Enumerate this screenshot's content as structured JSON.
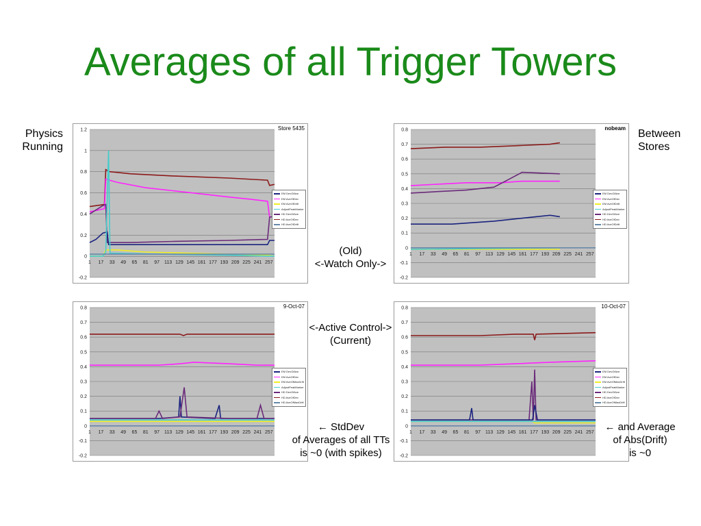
{
  "page": {
    "title": "Averages of all Trigger Towers",
    "left_label": [
      "Physics",
      "Running"
    ],
    "right_label": [
      "Between",
      "Stores"
    ],
    "note_old": [
      "(Old)",
      "<-Watch Only->"
    ],
    "note_active": [
      "<-Active Control->",
      "(Current)"
    ],
    "note_stddev": [
      "←      StdDev",
      "of Averages of all TTs",
      "is ~0 (with spikes)"
    ],
    "note_drift": [
      "← and Average",
      "of Abs(Drift)",
      "is ~0"
    ]
  },
  "chart_data": [
    {
      "type": "line",
      "title": "Store 5435",
      "ylim": [
        -0.2,
        1.2
      ],
      "yticks": [
        "-0.2",
        "0",
        "0.2",
        "0.4",
        "0.6",
        "0.8",
        "1",
        "1.2"
      ],
      "xticks": [
        "1",
        "17",
        "33",
        "49",
        "65",
        "81",
        "97",
        "113",
        "129",
        "145",
        "161",
        "177",
        "193",
        "209",
        "225",
        "241",
        "257"
      ],
      "xmax": 265,
      "legend": [
        "EM DevOfAve",
        "EM AveOfDev",
        "EM AveOfDrift",
        "AdjustPeakMarker",
        "HD DevOfAve",
        "HD AveOfDev",
        "HD AveOfDrift"
      ],
      "series": [
        {
          "color": "#8b1a1a",
          "points": [
            [
              1,
              0.47
            ],
            [
              22,
              0.49
            ],
            [
              24,
              0.82
            ],
            [
              30,
              0.8
            ],
            [
              60,
              0.78
            ],
            [
              120,
              0.76
            ],
            [
              200,
              0.74
            ],
            [
              255,
              0.72
            ],
            [
              258,
              0.67
            ],
            [
              265,
              0.68
            ]
          ]
        },
        {
          "color": "#ff22ff",
          "points": [
            [
              1,
              0.42
            ],
            [
              22,
              0.45
            ],
            [
              24,
              0.73
            ],
            [
              40,
              0.7
            ],
            [
              80,
              0.65
            ],
            [
              120,
              0.62
            ],
            [
              160,
              0.59
            ],
            [
              200,
              0.56
            ],
            [
              230,
              0.54
            ],
            [
              255,
              0.52
            ],
            [
              258,
              0.37
            ],
            [
              265,
              0.38
            ]
          ]
        },
        {
          "color": "#6a2a7a",
          "points": [
            [
              1,
              0.4
            ],
            [
              20,
              0.48
            ],
            [
              24,
              0.49
            ],
            [
              26,
              0.13
            ],
            [
              60,
              0.13
            ],
            [
              120,
              0.14
            ],
            [
              200,
              0.15
            ],
            [
              255,
              0.16
            ],
            [
              258,
              0.37
            ],
            [
              265,
              0.38
            ]
          ]
        },
        {
          "color": "#1a237e",
          "points": [
            [
              1,
              0.13
            ],
            [
              10,
              0.16
            ],
            [
              20,
              0.22
            ],
            [
              26,
              0.23
            ],
            [
              28,
              0.11
            ],
            [
              100,
              0.11
            ],
            [
              200,
              0.11
            ],
            [
              255,
              0.11
            ],
            [
              258,
              0.15
            ],
            [
              265,
              0.15
            ]
          ]
        },
        {
          "color": "#eeee22",
          "points": [
            [
              1,
              0.0
            ],
            [
              20,
              0.0
            ],
            [
              24,
              0.06
            ],
            [
              40,
              0.06
            ],
            [
              80,
              0.04
            ],
            [
              140,
              0.03
            ],
            [
              200,
              0.02
            ],
            [
              255,
              0.01
            ],
            [
              265,
              0.0
            ]
          ]
        },
        {
          "color": "#44cccc",
          "points": [
            [
              1,
              0.0
            ],
            [
              20,
              0.0
            ],
            [
              24,
              0.04
            ],
            [
              28,
              1.0
            ],
            [
              30,
              0.03
            ],
            [
              100,
              0.02
            ],
            [
              200,
              0.01
            ],
            [
              265,
              0.0
            ]
          ]
        },
        {
          "color": "#6688aa",
          "points": [
            [
              1,
              0.02
            ],
            [
              265,
              0.02
            ]
          ]
        }
      ]
    },
    {
      "type": "line",
      "title": "nobeam",
      "ylim": [
        -0.2,
        0.8
      ],
      "yticks": [
        "-0.2",
        "-0.1",
        "0",
        "0.1",
        "0.2",
        "0.3",
        "0.4",
        "0.5",
        "0.6",
        "0.7",
        "0.8"
      ],
      "xticks": [
        "1",
        "17",
        "33",
        "49",
        "65",
        "81",
        "97",
        "113",
        "129",
        "145",
        "161",
        "177",
        "193",
        "209",
        "225",
        "241",
        "257"
      ],
      "xmax": 265,
      "legend": [
        "EM DevOfAve",
        "EM AveOfDev",
        "EM AveOfDrift",
        "AdjustPeakMarker",
        "HD DevOfAve",
        "HD AveOfDev",
        "HD AveOfDrift"
      ],
      "series": [
        {
          "color": "#8b1a1a",
          "points": [
            [
              1,
              0.67
            ],
            [
              50,
              0.68
            ],
            [
              100,
              0.68
            ],
            [
              150,
              0.69
            ],
            [
              200,
              0.7
            ],
            [
              214,
              0.71
            ]
          ]
        },
        {
          "color": "#ff22ff",
          "points": [
            [
              1,
              0.42
            ],
            [
              40,
              0.43
            ],
            [
              80,
              0.44
            ],
            [
              130,
              0.44
            ],
            [
              160,
              0.45
            ],
            [
              214,
              0.45
            ]
          ]
        },
        {
          "color": "#6a2a7a",
          "points": [
            [
              1,
              0.37
            ],
            [
              40,
              0.38
            ],
            [
              80,
              0.39
            ],
            [
              120,
              0.41
            ],
            [
              140,
              0.46
            ],
            [
              160,
              0.51
            ],
            [
              214,
              0.5
            ]
          ]
        },
        {
          "color": "#1a237e",
          "points": [
            [
              1,
              0.16
            ],
            [
              60,
              0.16
            ],
            [
              120,
              0.18
            ],
            [
              160,
              0.2
            ],
            [
              200,
              0.22
            ],
            [
              214,
              0.21
            ]
          ]
        },
        {
          "color": "#eeee22",
          "points": [
            [
              1,
              -0.01
            ],
            [
              214,
              -0.01
            ]
          ]
        },
        {
          "color": "#44cccc",
          "points": [
            [
              1,
              -0.01
            ],
            [
              214,
              0.0
            ]
          ]
        },
        {
          "color": "#6688aa",
          "points": [
            [
              1,
              0.0
            ],
            [
              265,
              0.0
            ]
          ]
        }
      ]
    },
    {
      "type": "line",
      "title": "9-Oct-07",
      "ylim": [
        -0.2,
        0.8
      ],
      "yticks": [
        "-0.2",
        "-0.1",
        "0",
        "0.1",
        "0.2",
        "0.3",
        "0.4",
        "0.5",
        "0.6",
        "0.7",
        "0.8"
      ],
      "xticks": [
        "1",
        "17",
        "33",
        "49",
        "65",
        "81",
        "97",
        "113",
        "129",
        "145",
        "161",
        "177",
        "193",
        "209",
        "225",
        "241",
        "257"
      ],
      "xmax": 265,
      "legend": [
        "EM DevOfAve",
        "EM AveOfDev",
        "EM AveOfMaxDrift",
        "AdjustPeakMarker",
        "HD DevOfAve",
        "HD AveOfDev",
        "HD AveOfMaxDrift"
      ],
      "series": [
        {
          "color": "#8b1a1a",
          "points": [
            [
              1,
              0.62
            ],
            [
              130,
              0.62
            ],
            [
              135,
              0.61
            ],
            [
              140,
              0.62
            ],
            [
              265,
              0.62
            ]
          ]
        },
        {
          "color": "#ff22ff",
          "points": [
            [
              1,
              0.41
            ],
            [
              100,
              0.41
            ],
            [
              130,
              0.42
            ],
            [
              150,
              0.43
            ],
            [
              200,
              0.42
            ],
            [
              240,
              0.41
            ],
            [
              265,
              0.41
            ]
          ]
        },
        {
          "color": "#1a237e",
          "points": [
            [
              1,
              0.05
            ],
            [
              100,
              0.05
            ],
            [
              128,
              0.06
            ],
            [
              130,
              0.2
            ],
            [
              132,
              0.06
            ],
            [
              180,
              0.05
            ],
            [
              186,
              0.14
            ],
            [
              188,
              0.05
            ],
            [
              265,
              0.05
            ]
          ]
        },
        {
          "color": "#6a2a7a",
          "points": [
            [
              1,
              0.05
            ],
            [
              95,
              0.05
            ],
            [
              100,
              0.1
            ],
            [
              105,
              0.05
            ],
            [
              130,
              0.06
            ],
            [
              136,
              0.26
            ],
            [
              140,
              0.06
            ],
            [
              200,
              0.05
            ],
            [
              240,
              0.05
            ],
            [
              245,
              0.14
            ],
            [
              250,
              0.05
            ],
            [
              265,
              0.05
            ]
          ]
        },
        {
          "color": "#eeee22",
          "points": [
            [
              1,
              0.03
            ],
            [
              265,
              0.03
            ]
          ]
        },
        {
          "color": "#44cccc",
          "points": [
            [
              1,
              0.04
            ],
            [
              265,
              0.04
            ]
          ]
        },
        {
          "color": "#6688aa",
          "points": [
            [
              1,
              0.0
            ],
            [
              265,
              0.0
            ]
          ]
        }
      ]
    },
    {
      "type": "line",
      "title": "10-Oct-07",
      "ylim": [
        -0.2,
        0.8
      ],
      "yticks": [
        "-0.2",
        "-0.1",
        "0",
        "0.1",
        "0.2",
        "0.3",
        "0.4",
        "0.5",
        "0.6",
        "0.7",
        "0.8"
      ],
      "xticks": [
        "1",
        "17",
        "33",
        "49",
        "65",
        "81",
        "97",
        "113",
        "129",
        "145",
        "161",
        "177",
        "193",
        "209",
        "225",
        "241",
        "257"
      ],
      "xmax": 265,
      "legend": [
        "EM DevOfAve",
        "EM AveOfDev",
        "EM AveOfMaxDrift",
        "AdjustPeakMarker",
        "HD DevOfAve",
        "HD AveOfDev",
        "HD AveOfMaxDrift"
      ],
      "series": [
        {
          "color": "#8b1a1a",
          "points": [
            [
              1,
              0.61
            ],
            [
              100,
              0.61
            ],
            [
              150,
              0.62
            ],
            [
              176,
              0.62
            ],
            [
              178,
              0.58
            ],
            [
              180,
              0.62
            ],
            [
              265,
              0.63
            ]
          ]
        },
        {
          "color": "#ff22ff",
          "points": [
            [
              1,
              0.41
            ],
            [
              100,
              0.41
            ],
            [
              150,
              0.42
            ],
            [
              200,
              0.43
            ],
            [
              265,
              0.44
            ]
          ]
        },
        {
          "color": "#6a2a7a",
          "points": [
            [
              1,
              0.04
            ],
            [
              170,
              0.04
            ],
            [
              174,
              0.3
            ],
            [
              176,
              0.04
            ],
            [
              178,
              0.38
            ],
            [
              180,
              0.04
            ],
            [
              265,
              0.04
            ]
          ]
        },
        {
          "color": "#1a237e",
          "points": [
            [
              1,
              0.04
            ],
            [
              85,
              0.04
            ],
            [
              88,
              0.12
            ],
            [
              90,
              0.04
            ],
            [
              175,
              0.04
            ],
            [
              178,
              0.14
            ],
            [
              182,
              0.04
            ],
            [
              265,
              0.04
            ]
          ]
        },
        {
          "color": "#eeee22",
          "points": [
            [
              1,
              0.03
            ],
            [
              175,
              0.03
            ],
            [
              178,
              0.02
            ],
            [
              265,
              0.02
            ]
          ]
        },
        {
          "color": "#44cccc",
          "points": [
            [
              1,
              0.03
            ],
            [
              265,
              0.03
            ]
          ]
        },
        {
          "color": "#6688aa",
          "points": [
            [
              1,
              0.0
            ],
            [
              265,
              0.0
            ]
          ]
        }
      ]
    }
  ]
}
